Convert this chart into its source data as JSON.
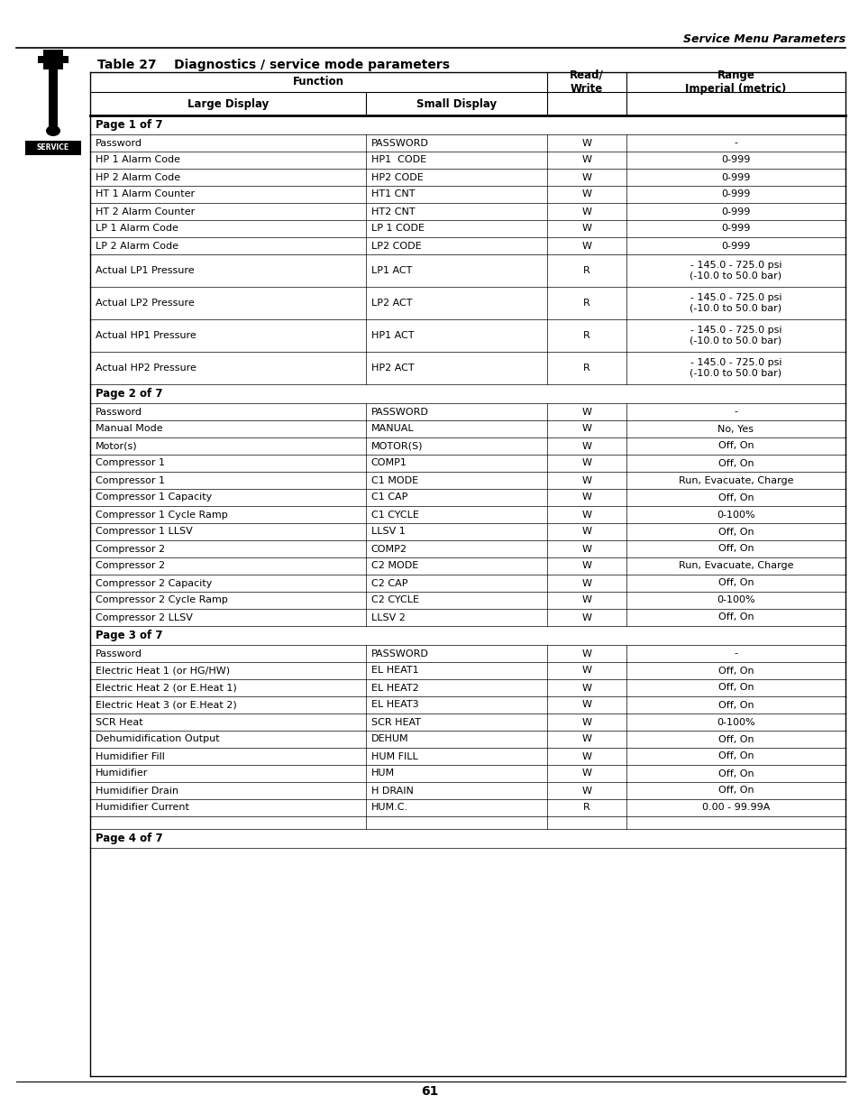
{
  "title": "Table 27    Diagnostics / service mode parameters",
  "header_right": "Service Menu Parameters",
  "page_number": "61",
  "rows": [
    {
      "type": "section",
      "text": "Page 1 of 7"
    },
    {
      "type": "data",
      "cols": [
        "Password",
        "PASSWORD",
        "W",
        "-"
      ],
      "tall": false
    },
    {
      "type": "data",
      "cols": [
        "HP 1 Alarm Code",
        "HP1  CODE",
        "W",
        "0-999"
      ],
      "tall": false
    },
    {
      "type": "data",
      "cols": [
        "HP 2 Alarm Code",
        "HP2 CODE",
        "W",
        "0-999"
      ],
      "tall": false
    },
    {
      "type": "data",
      "cols": [
        "HT 1 Alarm Counter",
        "HT1 CNT",
        "W",
        "0-999"
      ],
      "tall": false
    },
    {
      "type": "data",
      "cols": [
        "HT 2 Alarm Counter",
        "HT2 CNT",
        "W",
        "0-999"
      ],
      "tall": false
    },
    {
      "type": "data",
      "cols": [
        "LP 1 Alarm Code",
        "LP 1 CODE",
        "W",
        "0-999"
      ],
      "tall": false
    },
    {
      "type": "data",
      "cols": [
        "LP 2 Alarm Code",
        "LP2 CODE",
        "W",
        "0-999"
      ],
      "tall": false
    },
    {
      "type": "data",
      "cols": [
        "Actual LP1 Pressure",
        "LP1 ACT",
        "R",
        "- 145.0 - 725.0 psi\n(-10.0 to 50.0 bar)"
      ],
      "tall": true
    },
    {
      "type": "data",
      "cols": [
        "Actual LP2 Pressure",
        "LP2 ACT",
        "R",
        "- 145.0 - 725.0 psi\n(-10.0 to 50.0 bar)"
      ],
      "tall": true
    },
    {
      "type": "data",
      "cols": [
        "Actual HP1 Pressure",
        "HP1 ACT",
        "R",
        "- 145.0 - 725.0 psi\n(-10.0 to 50.0 bar)"
      ],
      "tall": true
    },
    {
      "type": "data",
      "cols": [
        "Actual HP2 Pressure",
        "HP2 ACT",
        "R",
        "- 145.0 - 725.0 psi\n(-10.0 to 50.0 bar)"
      ],
      "tall": true
    },
    {
      "type": "section",
      "text": "Page 2 of 7"
    },
    {
      "type": "data",
      "cols": [
        "Password",
        "PASSWORD",
        "W",
        "-"
      ],
      "tall": false
    },
    {
      "type": "data",
      "cols": [
        "Manual Mode",
        "MANUAL",
        "W",
        "No, Yes"
      ],
      "tall": false
    },
    {
      "type": "data",
      "cols": [
        "Motor(s)",
        "MOTOR(S)",
        "W",
        "Off, On"
      ],
      "tall": false
    },
    {
      "type": "data",
      "cols": [
        "Compressor 1",
        "COMP1",
        "W",
        "Off, On"
      ],
      "tall": false
    },
    {
      "type": "data",
      "cols": [
        "Compressor 1",
        "C1 MODE",
        "W",
        "Run, Evacuate, Charge"
      ],
      "tall": false
    },
    {
      "type": "data",
      "cols": [
        "Compressor 1 Capacity",
        "C1 CAP",
        "W",
        "Off, On"
      ],
      "tall": false
    },
    {
      "type": "data",
      "cols": [
        "Compressor 1 Cycle Ramp",
        "C1 CYCLE",
        "W",
        "0-100%"
      ],
      "tall": false
    },
    {
      "type": "data",
      "cols": [
        "Compressor 1 LLSV",
        "LLSV 1",
        "W",
        "Off, On"
      ],
      "tall": false
    },
    {
      "type": "data",
      "cols": [
        "Compressor 2",
        "COMP2",
        "W",
        "Off, On"
      ],
      "tall": false
    },
    {
      "type": "data",
      "cols": [
        "Compressor 2",
        "C2 MODE",
        "W",
        "Run, Evacuate, Charge"
      ],
      "tall": false
    },
    {
      "type": "data",
      "cols": [
        "Compressor 2 Capacity",
        "C2 CAP",
        "W",
        "Off, On"
      ],
      "tall": false
    },
    {
      "type": "data",
      "cols": [
        "Compressor 2 Cycle Ramp",
        "C2 CYCLE",
        "W",
        "0-100%"
      ],
      "tall": false
    },
    {
      "type": "data",
      "cols": [
        "Compressor 2 LLSV",
        "LLSV 2",
        "W",
        "Off, On"
      ],
      "tall": false
    },
    {
      "type": "section",
      "text": "Page 3 of 7"
    },
    {
      "type": "data",
      "cols": [
        "Password",
        "PASSWORD",
        "W",
        "-"
      ],
      "tall": false
    },
    {
      "type": "data",
      "cols": [
        "Electric Heat 1 (or HG/HW)",
        "EL HEAT1",
        "W",
        "Off, On"
      ],
      "tall": false
    },
    {
      "type": "data",
      "cols": [
        "Electric Heat 2 (or E.Heat 1)",
        "EL HEAT2",
        "W",
        "Off, On"
      ],
      "tall": false
    },
    {
      "type": "data",
      "cols": [
        "Electric Heat 3 (or E.Heat 2)",
        "EL HEAT3",
        "W",
        "Off, On"
      ],
      "tall": false
    },
    {
      "type": "data",
      "cols": [
        "SCR Heat",
        "SCR HEAT",
        "W",
        "0-100%"
      ],
      "tall": false
    },
    {
      "type": "data",
      "cols": [
        "Dehumidification Output",
        "DEHUM",
        "W",
        "Off, On"
      ],
      "tall": false
    },
    {
      "type": "data",
      "cols": [
        "Humidifier Fill",
        "HUM FILL",
        "W",
        "Off, On"
      ],
      "tall": false
    },
    {
      "type": "data",
      "cols": [
        "Humidifier",
        "HUM",
        "W",
        "Off, On"
      ],
      "tall": false
    },
    {
      "type": "data",
      "cols": [
        "Humidifier Drain",
        "H DRAIN",
        "W",
        "Off, On"
      ],
      "tall": false
    },
    {
      "type": "data",
      "cols": [
        "Humidifier Current",
        "HUM.C.",
        "R",
        "0.00 - 99.99A"
      ],
      "tall": false
    },
    {
      "type": "empty",
      "cols": [
        "",
        "",
        "",
        ""
      ],
      "tall": false
    },
    {
      "type": "section",
      "text": "Page 4 of 7"
    }
  ],
  "font_size": 8.0,
  "section_font_size": 8.5,
  "header_font_size": 8.5,
  "title_font_size": 10.0
}
